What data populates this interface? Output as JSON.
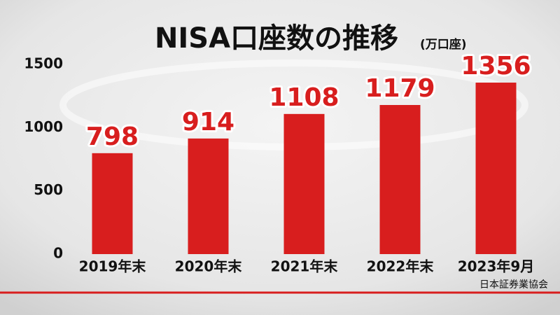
{
  "chart_data": {
    "type": "bar",
    "title": "NISA口座数の推移",
    "subtitle": "(万口座)",
    "categories": [
      "2019年末",
      "2020年末",
      "2021年末",
      "2022年末",
      "2023年9月"
    ],
    "values": [
      798,
      914,
      1108,
      1179,
      1356
    ],
    "color": "#d81e1e",
    "ylim": [
      0,
      1500
    ],
    "yticks": [
      0,
      500,
      1000,
      1500
    ],
    "grid": false,
    "source": "日本証券業協会"
  }
}
